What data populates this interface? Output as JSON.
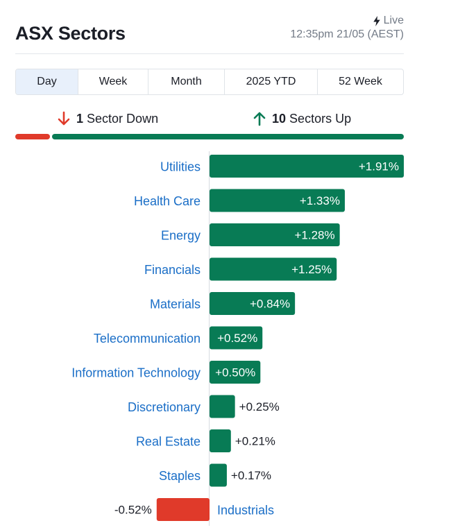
{
  "header": {
    "title": "ASX Sectors",
    "live_label": "Live",
    "timestamp": "12:35pm 21/05 (AEST)"
  },
  "tabs": [
    {
      "label": "Day",
      "active": true
    },
    {
      "label": "Week",
      "active": false
    },
    {
      "label": "Month",
      "active": false
    },
    {
      "label": "2025 YTD",
      "active": false
    },
    {
      "label": "52 Week",
      "active": false
    }
  ],
  "summary": {
    "down_count": "1",
    "down_label": "Sector Down",
    "up_count": "10",
    "up_label": "Sectors Up"
  },
  "colors": {
    "up": "#087b55",
    "down": "#e03a2a",
    "label": "#1a6ec7"
  },
  "chart_data": {
    "type": "bar",
    "orientation": "horizontal",
    "title": "ASX Sectors",
    "unit": "%",
    "categories": [
      "Utilities",
      "Health Care",
      "Energy",
      "Financials",
      "Materials",
      "Telecommunication",
      "Information Technology",
      "Discretionary",
      "Real Estate",
      "Staples",
      "Industrials"
    ],
    "values": [
      1.91,
      1.33,
      1.28,
      1.25,
      0.84,
      0.52,
      0.5,
      0.25,
      0.21,
      0.17,
      -0.52
    ],
    "value_labels": [
      "+1.91%",
      "+1.33%",
      "+1.28%",
      "+1.25%",
      "+0.84%",
      "+0.52%",
      "+0.50%",
      "+0.25%",
      "+0.21%",
      "+0.17%",
      "-0.52%"
    ]
  }
}
